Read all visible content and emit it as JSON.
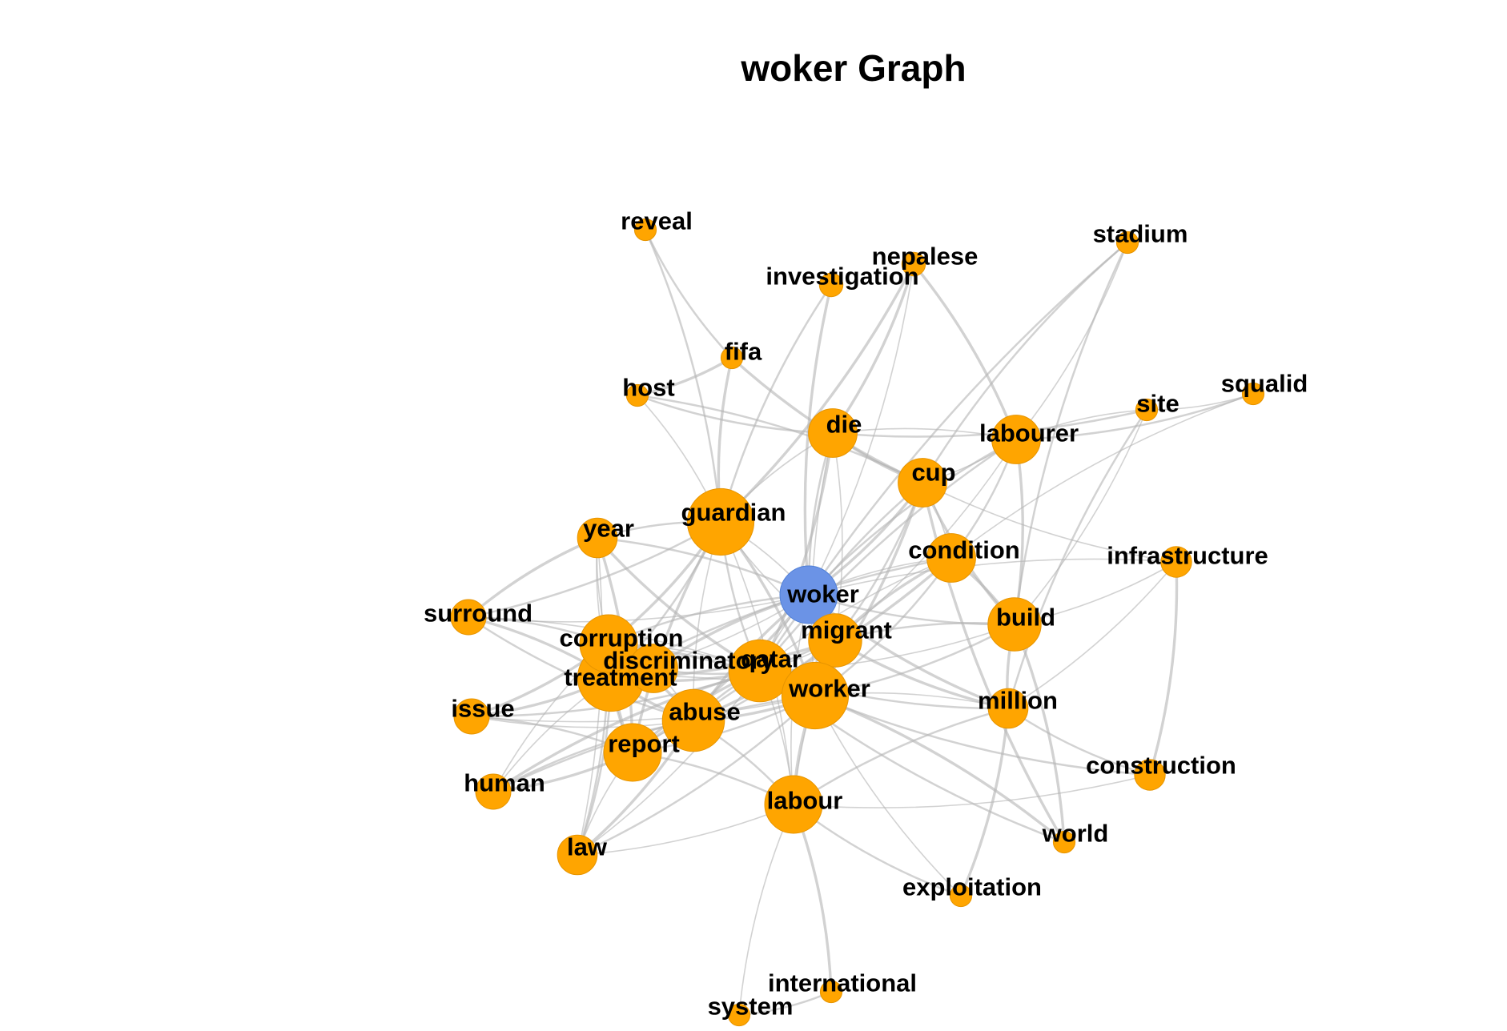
{
  "title": "woker Graph",
  "colors": {
    "center_node": "#6b93e6",
    "node": "#ffa500",
    "edge": "#b4b4b4",
    "label": "#000000",
    "background": "#ffffff"
  },
  "graph": {
    "center": "woker",
    "nodes": [
      {
        "id": "woker",
        "label": "woker",
        "type": "center",
        "weight": 5
      },
      {
        "id": "guardian",
        "label": "guardian",
        "type": "term",
        "weight": 6
      },
      {
        "id": "die",
        "label": "die",
        "type": "term",
        "weight": 4
      },
      {
        "id": "cup",
        "label": "cup",
        "type": "term",
        "weight": 4
      },
      {
        "id": "labourer",
        "label": "labourer",
        "type": "term",
        "weight": 4
      },
      {
        "id": "condition",
        "label": "condition",
        "type": "term",
        "weight": 4
      },
      {
        "id": "build",
        "label": "build",
        "type": "term",
        "weight": 4.5
      },
      {
        "id": "migrant",
        "label": "migrant",
        "type": "term",
        "weight": 4.5
      },
      {
        "id": "qatar",
        "label": "qatar",
        "type": "term",
        "weight": 5.5
      },
      {
        "id": "worker",
        "label": "worker",
        "type": "term",
        "weight": 6
      },
      {
        "id": "abuse",
        "label": "abuse",
        "type": "term",
        "weight": 5.5
      },
      {
        "id": "treatment",
        "label": "treatment",
        "type": "term",
        "weight": 6
      },
      {
        "id": "corruption",
        "label": "corruption",
        "type": "term",
        "weight": 5
      },
      {
        "id": "discriminatory",
        "label": "discriminatory",
        "type": "term",
        "weight": 4
      },
      {
        "id": "report",
        "label": "report",
        "type": "term",
        "weight": 5
      },
      {
        "id": "labour",
        "label": "labour",
        "type": "term",
        "weight": 5
      },
      {
        "id": "year",
        "label": "year",
        "type": "term",
        "weight": 3
      },
      {
        "id": "surround",
        "label": "surround",
        "type": "term",
        "weight": 2.5
      },
      {
        "id": "issue",
        "label": "issue",
        "type": "term",
        "weight": 2.5
      },
      {
        "id": "human",
        "label": "human",
        "type": "term",
        "weight": 2.5
      },
      {
        "id": "law",
        "label": "law",
        "type": "term",
        "weight": 3
      },
      {
        "id": "million",
        "label": "million",
        "type": "term",
        "weight": 3
      },
      {
        "id": "reveal",
        "label": "reveal",
        "type": "term",
        "weight": 1
      },
      {
        "id": "investigation",
        "label": "investigation",
        "type": "term",
        "weight": 1.2
      },
      {
        "id": "nepalese",
        "label": "nepalese",
        "type": "term",
        "weight": 1.2
      },
      {
        "id": "stadium",
        "label": "stadium",
        "type": "term",
        "weight": 1
      },
      {
        "id": "fifa",
        "label": "fifa",
        "type": "term",
        "weight": 1
      },
      {
        "id": "host",
        "label": "host",
        "type": "term",
        "weight": 1
      },
      {
        "id": "site",
        "label": "site",
        "type": "term",
        "weight": 1
      },
      {
        "id": "squalid",
        "label": "squalid",
        "type": "term",
        "weight": 1
      },
      {
        "id": "infrastructure",
        "label": "infrastructure",
        "type": "term",
        "weight": 2
      },
      {
        "id": "construction",
        "label": "construction",
        "type": "term",
        "weight": 2
      },
      {
        "id": "world",
        "label": "world",
        "type": "term",
        "weight": 1
      },
      {
        "id": "exploitation",
        "label": "exploitation",
        "type": "term",
        "weight": 1
      },
      {
        "id": "international",
        "label": "international",
        "type": "term",
        "weight": 1
      },
      {
        "id": "system",
        "label": "system",
        "type": "term",
        "weight": 1
      }
    ],
    "edges": [
      [
        "woker",
        "guardian"
      ],
      [
        "woker",
        "die"
      ],
      [
        "woker",
        "cup"
      ],
      [
        "woker",
        "condition"
      ],
      [
        "woker",
        "build"
      ],
      [
        "woker",
        "migrant"
      ],
      [
        "woker",
        "qatar"
      ],
      [
        "woker",
        "worker"
      ],
      [
        "woker",
        "abuse"
      ],
      [
        "woker",
        "treatment"
      ],
      [
        "woker",
        "corruption"
      ],
      [
        "woker",
        "report"
      ],
      [
        "woker",
        "labour"
      ],
      [
        "woker",
        "labourer"
      ],
      [
        "woker",
        "million"
      ],
      [
        "woker",
        "surround"
      ],
      [
        "woker",
        "year"
      ],
      [
        "woker",
        "investigation"
      ],
      [
        "woker",
        "nepalese"
      ],
      [
        "woker",
        "stadium"
      ],
      [
        "woker",
        "discriminatory"
      ],
      [
        "woker",
        "infrastructure"
      ],
      [
        "guardian",
        "reveal"
      ],
      [
        "guardian",
        "fifa"
      ],
      [
        "guardian",
        "host"
      ],
      [
        "guardian",
        "investigation"
      ],
      [
        "guardian",
        "nepalese"
      ],
      [
        "guardian",
        "die"
      ],
      [
        "guardian",
        "qatar"
      ],
      [
        "guardian",
        "worker"
      ],
      [
        "guardian",
        "abuse"
      ],
      [
        "guardian",
        "treatment"
      ],
      [
        "guardian",
        "report"
      ],
      [
        "guardian",
        "labour"
      ],
      [
        "guardian",
        "year"
      ],
      [
        "guardian",
        "corruption"
      ],
      [
        "guardian",
        "migrant"
      ],
      [
        "guardian",
        "surround"
      ],
      [
        "die",
        "cup"
      ],
      [
        "die",
        "labourer"
      ],
      [
        "die",
        "site"
      ],
      [
        "die",
        "qatar"
      ],
      [
        "die",
        "worker"
      ],
      [
        "die",
        "host"
      ],
      [
        "die",
        "nepalese"
      ],
      [
        "die",
        "migrant"
      ],
      [
        "cup",
        "host"
      ],
      [
        "cup",
        "fifa"
      ],
      [
        "cup",
        "labourer"
      ],
      [
        "cup",
        "stadium"
      ],
      [
        "cup",
        "build"
      ],
      [
        "cup",
        "condition"
      ],
      [
        "cup",
        "qatar"
      ],
      [
        "cup",
        "worker"
      ],
      [
        "cup",
        "infrastructure"
      ],
      [
        "cup",
        "migrant"
      ],
      [
        "cup",
        "world"
      ],
      [
        "labourer",
        "site"
      ],
      [
        "labourer",
        "squalid"
      ],
      [
        "labourer",
        "build"
      ],
      [
        "labourer",
        "stadium"
      ],
      [
        "labourer",
        "condition"
      ],
      [
        "labourer",
        "nepalese"
      ],
      [
        "labourer",
        "migrant"
      ],
      [
        "labourer",
        "qatar"
      ],
      [
        "condition",
        "build"
      ],
      [
        "condition",
        "qatar"
      ],
      [
        "condition",
        "worker"
      ],
      [
        "condition",
        "migrant"
      ],
      [
        "condition",
        "squalid"
      ],
      [
        "condition",
        "treatment"
      ],
      [
        "condition",
        "abuse"
      ],
      [
        "build",
        "infrastructure"
      ],
      [
        "build",
        "worker"
      ],
      [
        "build",
        "million"
      ],
      [
        "build",
        "qatar"
      ],
      [
        "build",
        "migrant"
      ],
      [
        "build",
        "world"
      ],
      [
        "build",
        "site"
      ],
      [
        "build",
        "stadium"
      ],
      [
        "migrant",
        "worker"
      ],
      [
        "migrant",
        "qatar"
      ],
      [
        "migrant",
        "abuse"
      ],
      [
        "migrant",
        "treatment"
      ],
      [
        "migrant",
        "labour"
      ],
      [
        "migrant",
        "report"
      ],
      [
        "migrant",
        "million"
      ],
      [
        "qatar",
        "worker"
      ],
      [
        "qatar",
        "abuse"
      ],
      [
        "qatar",
        "treatment"
      ],
      [
        "qatar",
        "corruption"
      ],
      [
        "qatar",
        "discriminatory"
      ],
      [
        "qatar",
        "report"
      ],
      [
        "qatar",
        "labour"
      ],
      [
        "qatar",
        "million"
      ],
      [
        "qatar",
        "year"
      ],
      [
        "qatar",
        "surround"
      ],
      [
        "qatar",
        "issue"
      ],
      [
        "qatar",
        "human"
      ],
      [
        "qatar",
        "law"
      ],
      [
        "qatar",
        "world"
      ],
      [
        "worker",
        "abuse"
      ],
      [
        "worker",
        "treatment"
      ],
      [
        "worker",
        "report"
      ],
      [
        "worker",
        "labour"
      ],
      [
        "worker",
        "million"
      ],
      [
        "worker",
        "construction"
      ],
      [
        "worker",
        "world"
      ],
      [
        "worker",
        "exploitation"
      ],
      [
        "worker",
        "law"
      ],
      [
        "worker",
        "corruption"
      ],
      [
        "worker",
        "issue"
      ],
      [
        "worker",
        "human"
      ],
      [
        "abuse",
        "treatment"
      ],
      [
        "abuse",
        "report"
      ],
      [
        "abuse",
        "labour"
      ],
      [
        "abuse",
        "corruption"
      ],
      [
        "abuse",
        "issue"
      ],
      [
        "abuse",
        "human"
      ],
      [
        "abuse",
        "law"
      ],
      [
        "abuse",
        "discriminatory"
      ],
      [
        "abuse",
        "surround"
      ],
      [
        "treatment",
        "corruption"
      ],
      [
        "treatment",
        "discriminatory"
      ],
      [
        "treatment",
        "report"
      ],
      [
        "treatment",
        "issue"
      ],
      [
        "treatment",
        "human"
      ],
      [
        "treatment",
        "law"
      ],
      [
        "treatment",
        "surround"
      ],
      [
        "treatment",
        "year"
      ],
      [
        "corruption",
        "surround"
      ],
      [
        "corruption",
        "issue"
      ],
      [
        "corruption",
        "human"
      ],
      [
        "corruption",
        "law"
      ],
      [
        "corruption",
        "report"
      ],
      [
        "corruption",
        "year"
      ],
      [
        "report",
        "issue"
      ],
      [
        "report",
        "human"
      ],
      [
        "report",
        "law"
      ],
      [
        "report",
        "labour"
      ],
      [
        "report",
        "year"
      ],
      [
        "labour",
        "law"
      ],
      [
        "labour",
        "exploitation"
      ],
      [
        "labour",
        "international"
      ],
      [
        "labour",
        "system"
      ],
      [
        "labour",
        "million"
      ],
      [
        "year",
        "surround"
      ],
      [
        "year",
        "law"
      ],
      [
        "million",
        "construction"
      ],
      [
        "million",
        "exploitation"
      ],
      [
        "million",
        "infrastructure"
      ],
      [
        "million",
        "site"
      ],
      [
        "construction",
        "infrastructure"
      ],
      [
        "construction",
        "labour"
      ],
      [
        "reveal",
        "fifa"
      ],
      [
        "fifa",
        "host"
      ],
      [
        "site",
        "squalid"
      ],
      [
        "international",
        "system"
      ]
    ]
  }
}
